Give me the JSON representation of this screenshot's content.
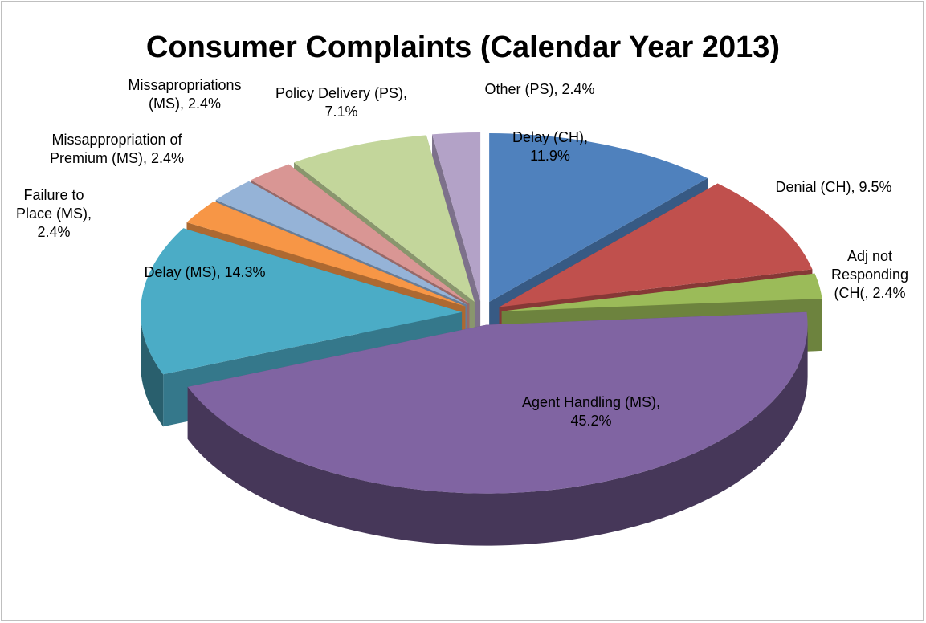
{
  "chart_data": {
    "type": "pie",
    "title": "Consumer Complaints (Calendar Year 2013)",
    "categories": [
      "Delay (CH)",
      "Denial (CH)",
      "Adj not Responding (CH(",
      "Agent Handling (MS)",
      "Delay (MS)",
      "Failure to Place (MS)",
      "Missappropriation of Premium (MS)",
      "Missapropriations (MS)",
      "Policy Delivery (PS)",
      "Other (PS)"
    ],
    "values": [
      11.9,
      9.5,
      2.4,
      45.2,
      14.3,
      2.4,
      2.4,
      2.4,
      7.1,
      2.4
    ],
    "value_labels": [
      "11.9%",
      "9.5%",
      "2.4%",
      "45.2%",
      "14.3%",
      "2.4%",
      "2.4%",
      "2.4%",
      "7.1%",
      "2.4%"
    ],
    "label_separator": ", ",
    "colors": [
      "#4f81bd",
      "#c0504d",
      "#9bbb59",
      "#8064a2",
      "#4bacc6",
      "#f79646",
      "#95b3d7",
      "#d99694",
      "#c3d69b",
      "#b3a2c7"
    ]
  }
}
